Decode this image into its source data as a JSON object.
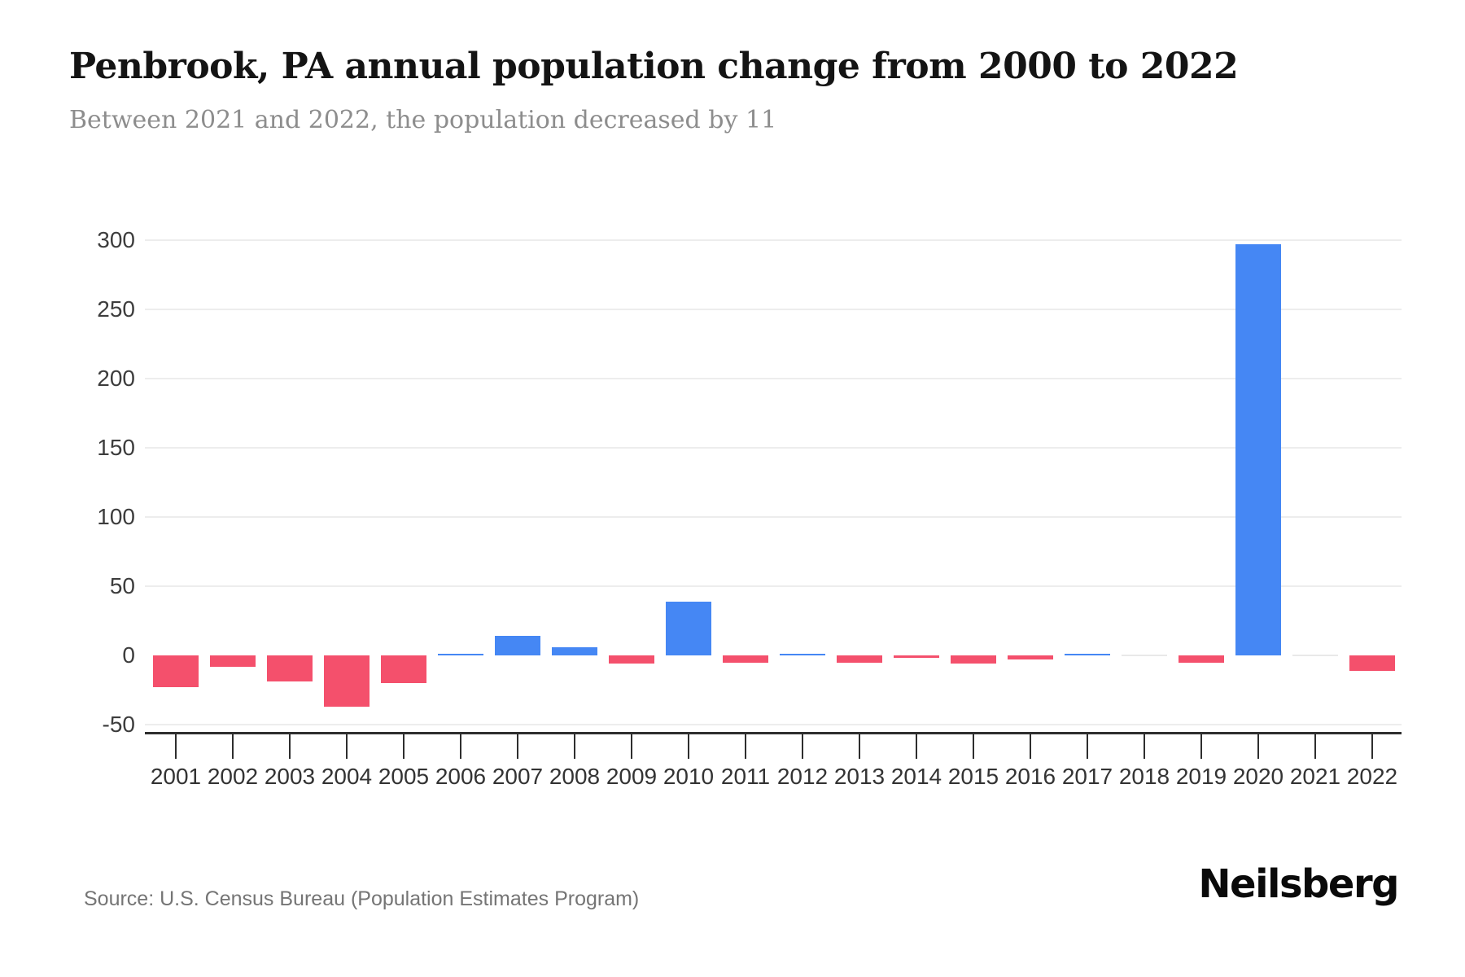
{
  "header": {
    "title": "Penbrook, PA annual population change from 2000 to 2022",
    "subtitle": "Between 2021 and 2022, the population decreased by 11"
  },
  "footer": {
    "source": "Source: U.S. Census Bureau (Population Estimates Program)",
    "brand": "Neilsberg"
  },
  "chart_data": {
    "type": "bar",
    "title": "Penbrook, PA annual population change from 2000 to 2022",
    "subtitle": "Between 2021 and 2022, the population decreased by 11",
    "xlabel": "",
    "ylabel": "",
    "categories": [
      "2001",
      "2002",
      "2003",
      "2004",
      "2005",
      "2006",
      "2007",
      "2008",
      "2009",
      "2010",
      "2011",
      "2012",
      "2013",
      "2014",
      "2015",
      "2016",
      "2017",
      "2018",
      "2019",
      "2020",
      "2021",
      "2022"
    ],
    "values": [
      -23,
      -8,
      -19,
      -37,
      -20,
      1,
      14,
      6,
      -6,
      39,
      -5,
      1,
      -5,
      -2,
      -6,
      -3,
      1,
      0,
      -5,
      297,
      0,
      -11
    ],
    "ylim": [
      -50,
      300
    ],
    "y_ticks": [
      {
        "value": 300,
        "label": "300"
      },
      {
        "value": 250,
        "label": "250"
      },
      {
        "value": 200,
        "label": "200"
      },
      {
        "value": 150,
        "label": "150"
      },
      {
        "value": 100,
        "label": "100"
      },
      {
        "value": 50,
        "label": "50"
      },
      {
        "value": 0,
        "label": "0"
      },
      {
        "value": -50,
        "label": "-50"
      }
    ],
    "gridlines_at": [
      300,
      250,
      200,
      150,
      100,
      50,
      -50
    ],
    "grid": "horizontal",
    "legend": "none",
    "colors": {
      "positive_bar": "#4587F4",
      "negative_bar": "#F4506C",
      "zero_bar": "#E9E9E9",
      "gridline": "#EDEDED",
      "axis": "#2E2E2E",
      "title_text": "#141414",
      "subtitle_text": "#8D8D8D",
      "source_text": "#757575"
    }
  }
}
